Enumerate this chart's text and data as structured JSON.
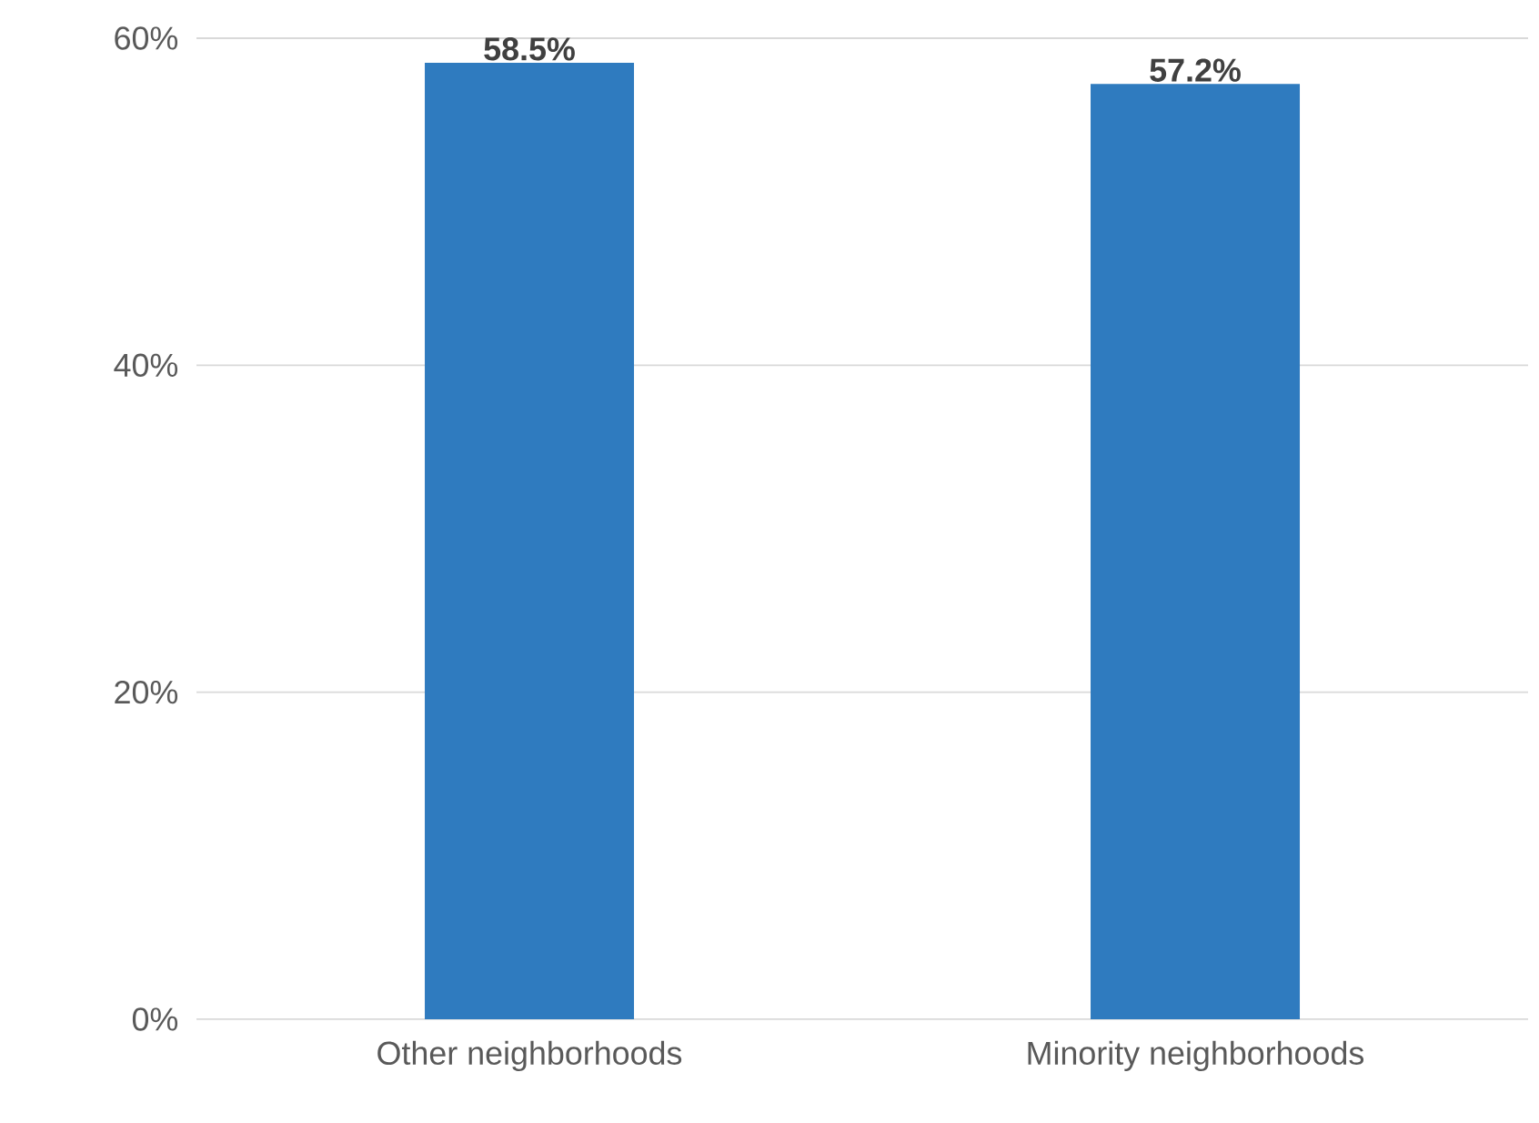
{
  "chart_data": {
    "type": "bar",
    "categories": [
      "Other neighborhoods",
      "Minority neighborhoods"
    ],
    "values": [
      58.5,
      57.2
    ],
    "color": "#2f7bbf",
    "value_labels": [
      "58.5%",
      "57.2%"
    ],
    "ylim": [
      0,
      60
    ],
    "yticks": [
      {
        "value": 0,
        "label": "0%"
      },
      {
        "value": 20,
        "label": "20%"
      },
      {
        "value": 40,
        "label": "40%"
      },
      {
        "value": 60,
        "label": "60%"
      }
    ],
    "grid": "y"
  }
}
